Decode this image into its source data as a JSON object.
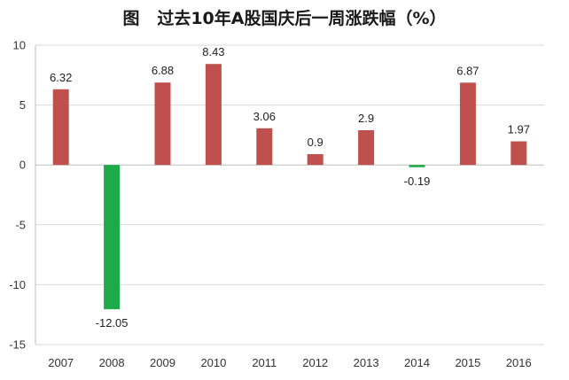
{
  "chart_data": {
    "type": "bar",
    "title": "图   过去10年A股国庆后一周涨跌幅（%）",
    "categories": [
      "2007",
      "2008",
      "2009",
      "2010",
      "2011",
      "2012",
      "2013",
      "2014",
      "2015",
      "2016"
    ],
    "values": [
      6.32,
      -12.05,
      6.88,
      8.43,
      3.06,
      0.9,
      2.9,
      -0.19,
      6.87,
      1.97
    ],
    "data_labels": [
      "6.32",
      "-12.05",
      "6.88",
      "8.43",
      "3.06",
      "0.9",
      "2.9",
      "-0.19",
      "6.87",
      "1.97"
    ],
    "yticks": [
      "10",
      "5",
      "0",
      "-5",
      "-10",
      "-15"
    ],
    "ylim": [
      -15,
      10
    ],
    "xlabel": "",
    "ylabel": "",
    "grid": true,
    "legend": "none",
    "colors": {
      "positive": "#c0504d",
      "negative": "#1faa4a",
      "grid": "#d9d9d9",
      "axis": "#bfbfbf"
    }
  }
}
